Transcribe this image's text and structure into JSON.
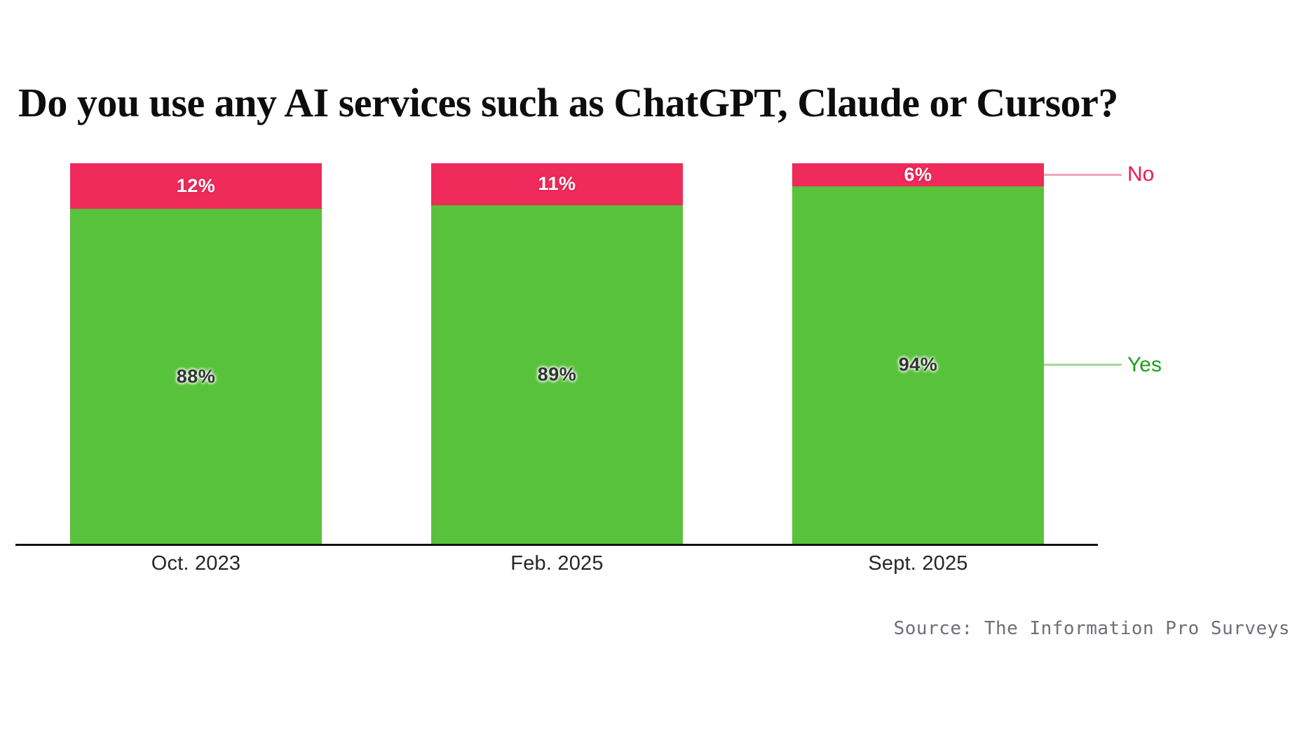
{
  "title": "Do you use any AI services such as ChatGPT, Claude or Cursor?",
  "source": "Source: The Information Pro Surveys",
  "legend": {
    "no_label": "No",
    "yes_label": "Yes"
  },
  "colors": {
    "yes_bar": "#58c23c",
    "no_bar": "#ee2b5b",
    "yes_text": "#1f9d20",
    "no_text": "#ed1a52",
    "yes_connector": "#a6d796",
    "no_connector": "#f3a8ba",
    "axis": "#111111",
    "value_dark": "#333333",
    "value_light": "#ffffff",
    "source_text": "#6e6e78"
  },
  "chart_data": {
    "type": "bar",
    "stacked": true,
    "percent": true,
    "title": "Do you use any AI services such as ChatGPT, Claude or Cursor?",
    "categories": [
      "Oct. 2023",
      "Feb. 2025",
      "Sept. 2025"
    ],
    "series": [
      {
        "name": "Yes",
        "values": [
          88,
          89,
          94
        ],
        "color": "#58c23c"
      },
      {
        "name": "No",
        "values": [
          12,
          11,
          6
        ],
        "color": "#ee2b5b"
      }
    ],
    "value_suffix": "%",
    "ylim": [
      0,
      100
    ],
    "grid": false,
    "legend_position": "right",
    "xlabel": "",
    "ylabel": ""
  }
}
